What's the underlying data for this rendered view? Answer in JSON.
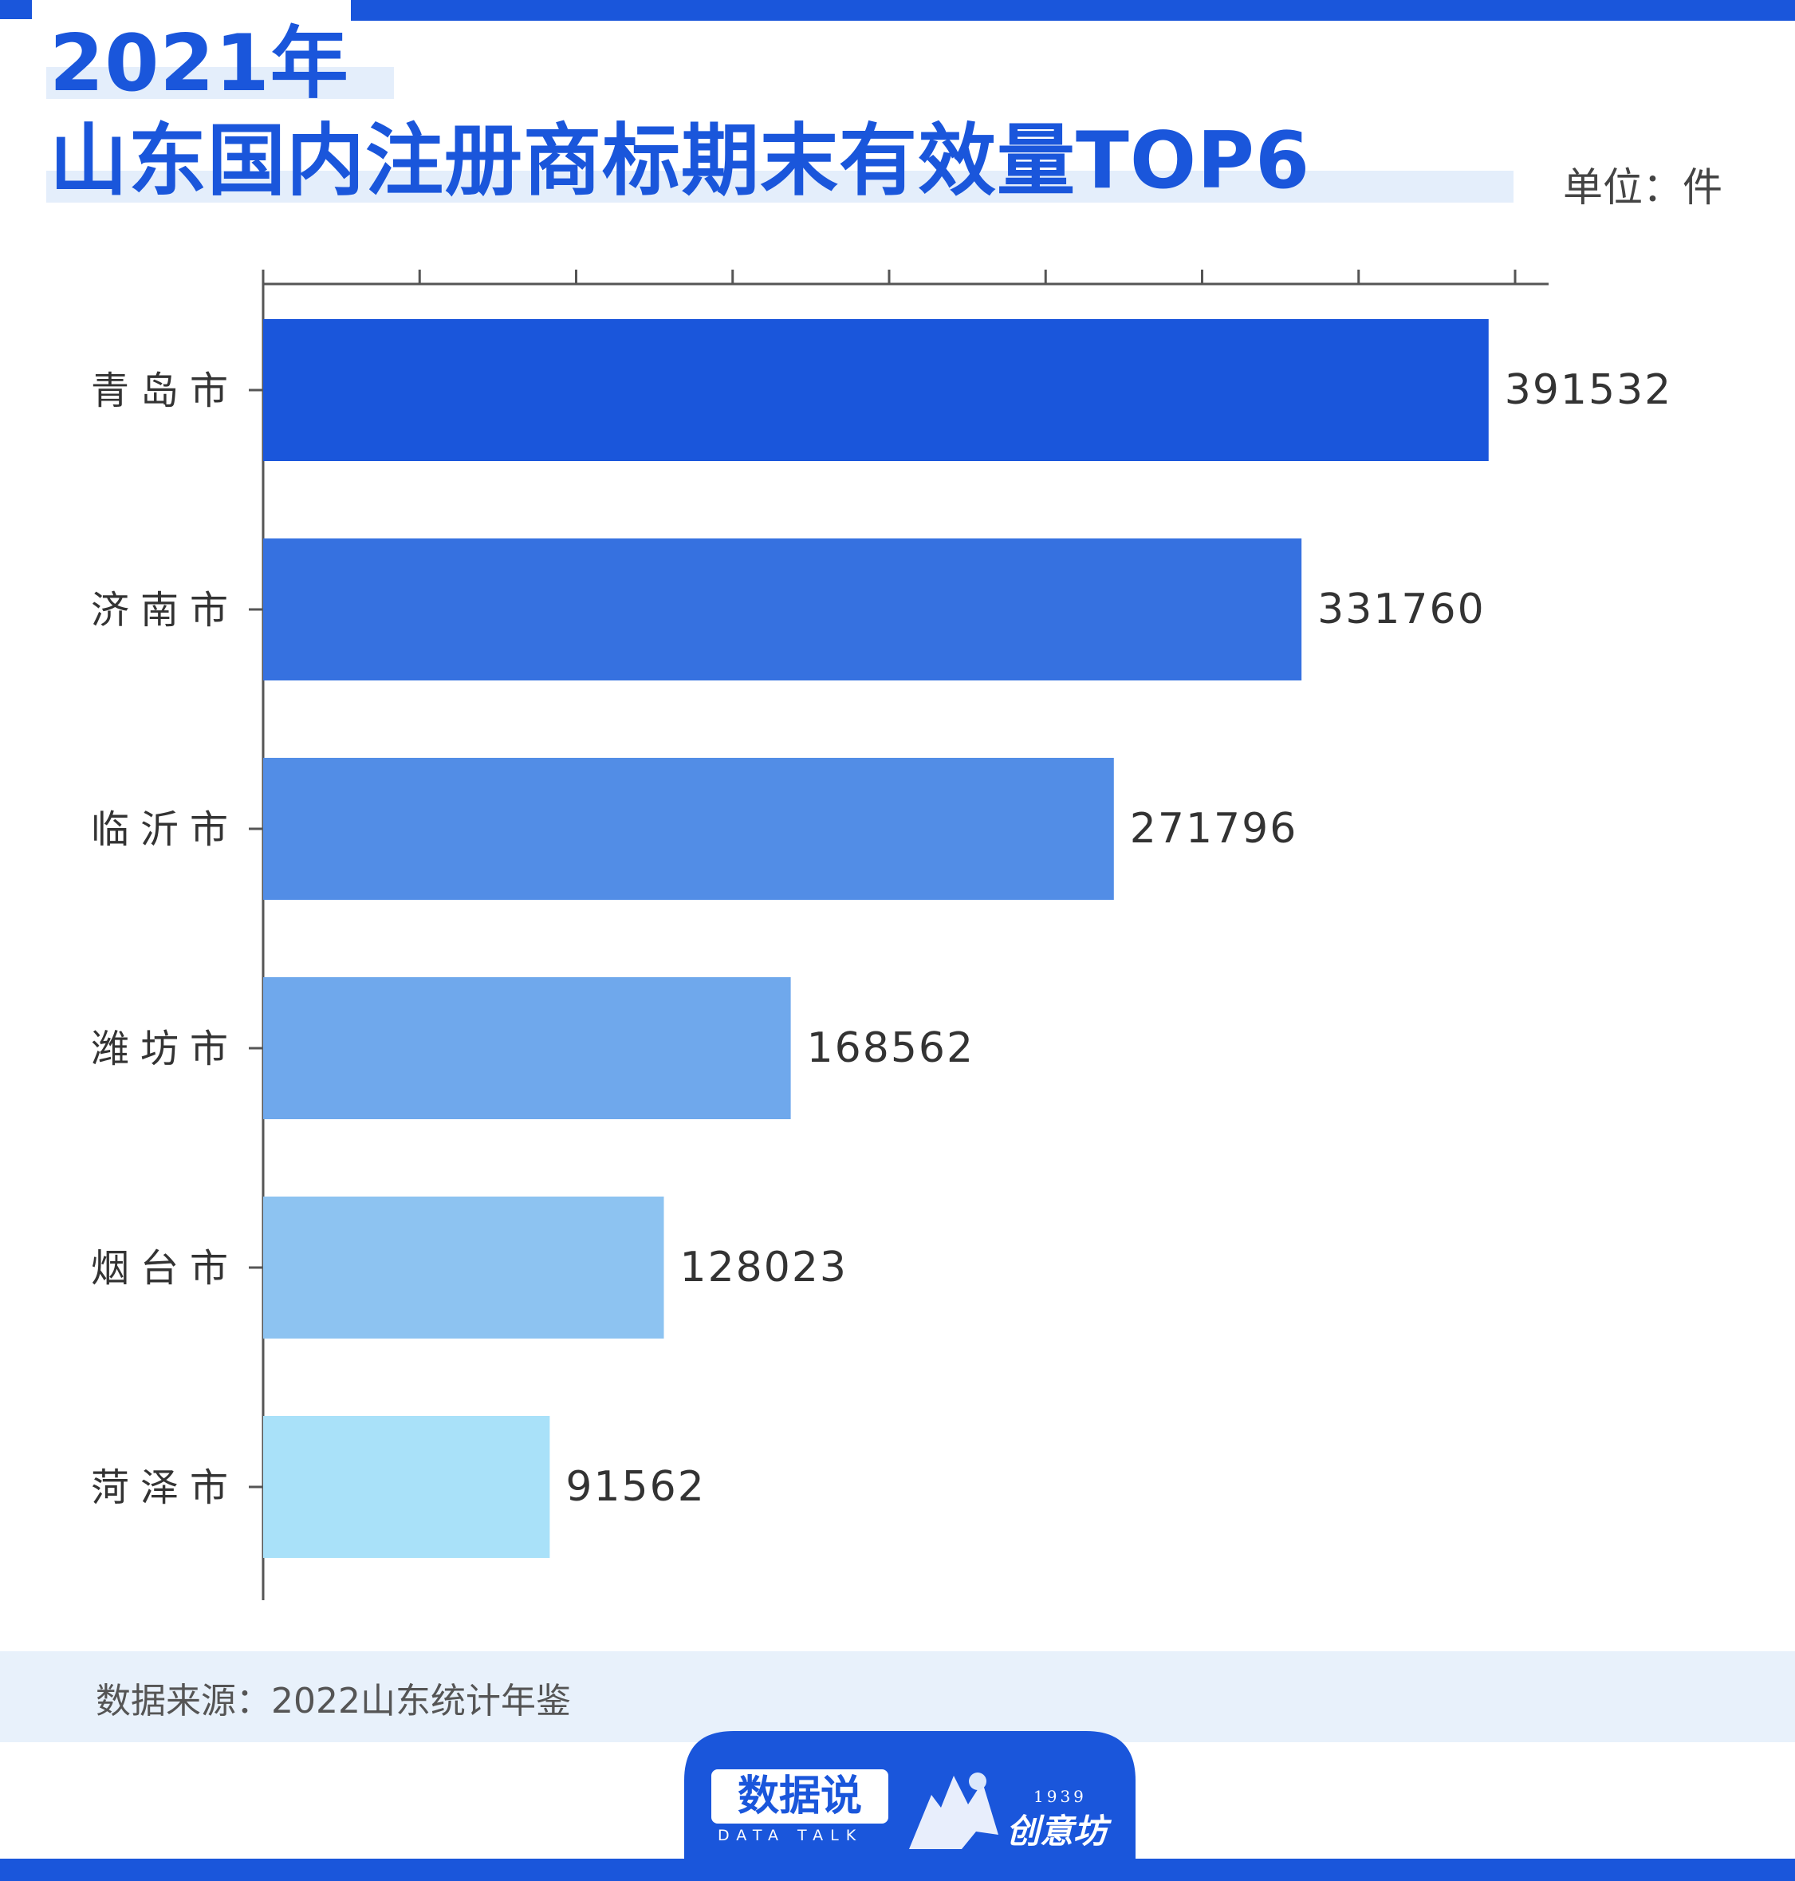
{
  "title": {
    "line1": "2021年",
    "line2": "山东国内注册商标期末有效量TOP6"
  },
  "unit": "单位：件",
  "source": "数据来源：2022山东统计年鉴",
  "logo": {
    "brand": "数据说",
    "brand_sub": "DATA TALK",
    "partner_year": "1939",
    "partner_name": "创意坊"
  },
  "colors": {
    "accent": "#1a56db",
    "bars": [
      "#1a56db",
      "#3671e0",
      "#528de6",
      "#6fa8ec",
      "#8dc3f1",
      "#a9e1f9"
    ]
  },
  "chart_data": {
    "type": "bar",
    "orientation": "horizontal",
    "categories": [
      "青岛市",
      "济南市",
      "临沂市",
      "潍坊市",
      "烟台市",
      "菏泽市"
    ],
    "values": [
      391532,
      331760,
      271796,
      168562,
      128023,
      91562
    ],
    "data_labels": [
      "391532",
      "331760",
      "271796",
      "168562",
      "128023",
      "91562"
    ],
    "xlim": [
      0,
      400000
    ],
    "x_ticks": [
      0,
      50000,
      100000,
      150000,
      200000,
      250000,
      300000,
      350000,
      400000
    ],
    "x_tick_labels_shown": false,
    "x_axis_position": "top",
    "grid": false,
    "legend": "none"
  }
}
